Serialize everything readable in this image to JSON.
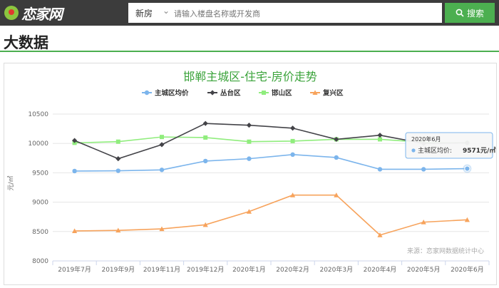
{
  "header": {
    "logo_text": "恋家网",
    "search_type": "新房",
    "search_placeholder": "请输入楼盘名称或开发商",
    "search_button": "搜索"
  },
  "page": {
    "title": "大数据"
  },
  "chart_data": {
    "type": "line",
    "title": "邯郸主城区-住宅-房价走势",
    "ylabel": "元/㎡",
    "ylim": [
      8000,
      10500
    ],
    "yticks": [
      8000,
      8500,
      9000,
      9500,
      10000,
      10500
    ],
    "categories": [
      "2019年7月",
      "2019年9月",
      "2019年11月",
      "2019年12月",
      "2020年1月",
      "2020年2月",
      "2020年3月",
      "2020年4月",
      "2020年5月",
      "2020年6月"
    ],
    "series": [
      {
        "name": "主城区均价",
        "color": "#7cb5ec",
        "marker": "circle",
        "values": [
          9530,
          9535,
          9550,
          9700,
          9740,
          9810,
          9760,
          9560,
          9560,
          9571
        ]
      },
      {
        "name": "丛台区",
        "color": "#434348",
        "marker": "diamond",
        "values": [
          10050,
          9740,
          9980,
          10340,
          10310,
          10260,
          10070,
          10140,
          10000,
          10010
        ]
      },
      {
        "name": "邯山区",
        "color": "#90ed7d",
        "marker": "square",
        "values": [
          10010,
          10030,
          10110,
          10100,
          10030,
          10040,
          10070,
          10070,
          10020,
          10010
        ]
      },
      {
        "name": "复兴区",
        "color": "#f7a35c",
        "marker": "triangle",
        "values": [
          8510,
          8520,
          8545,
          8615,
          8840,
          9120,
          9120,
          8440,
          8660,
          8700
        ]
      }
    ],
    "tooltip": {
      "title": "2020年6月",
      "series": "主城区均价",
      "label": "主城区均价: ",
      "value": "9571元/㎡"
    },
    "source": "来源：恋家网数据统计中心",
    "legend_position": "top-center",
    "grid": true
  }
}
